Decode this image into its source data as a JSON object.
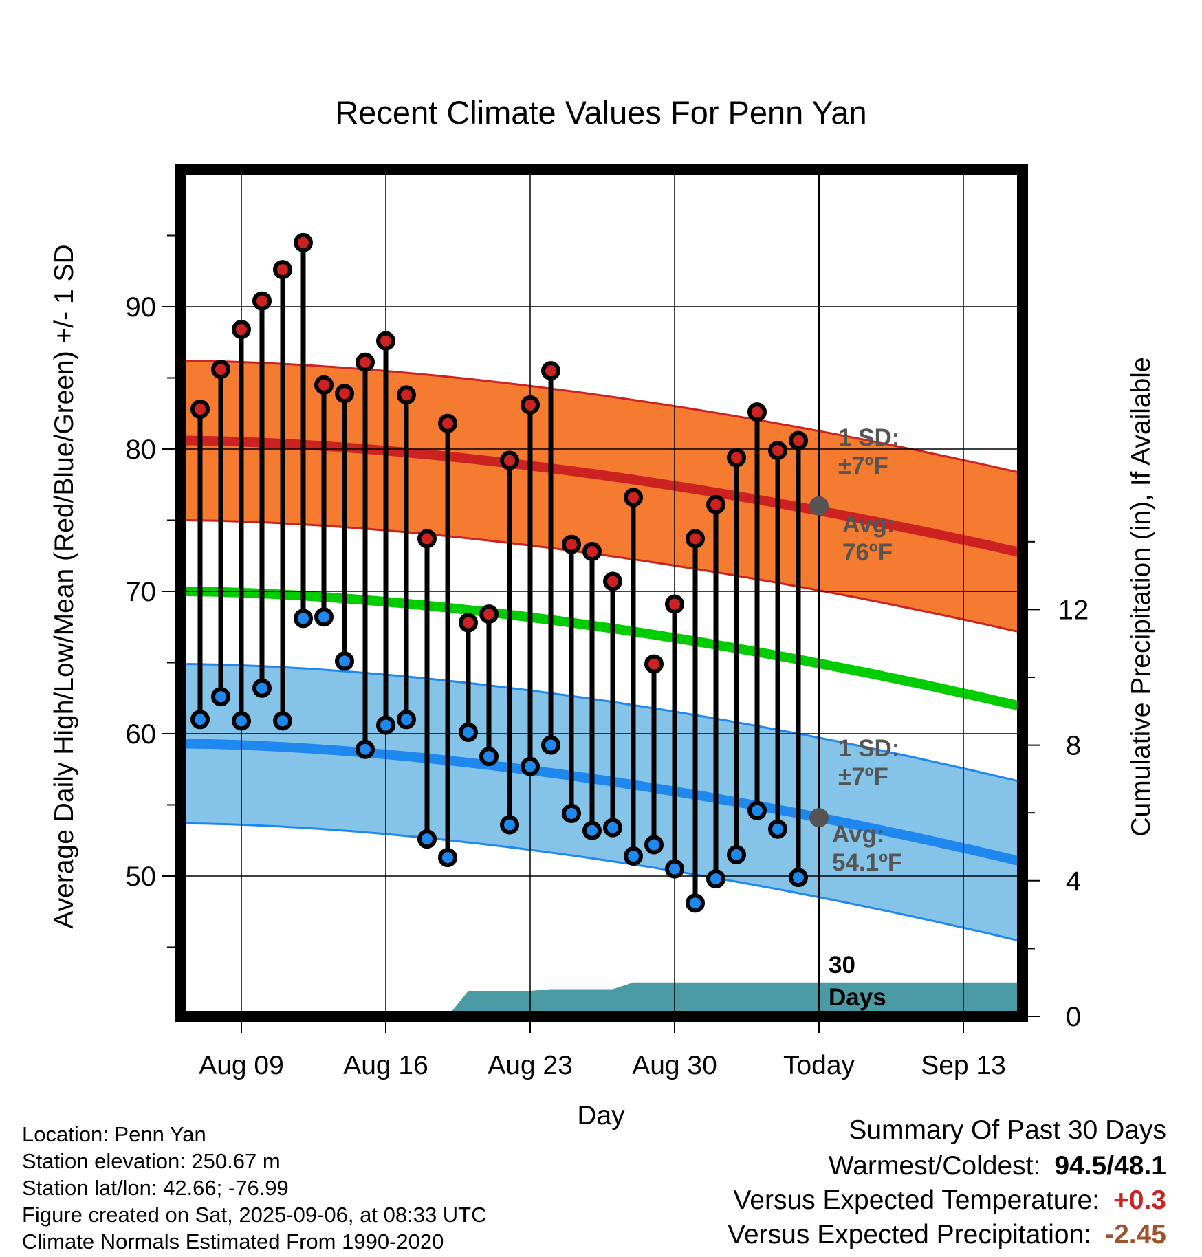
{
  "chart_data": {
    "type": "line",
    "title": "Recent Climate Values For Penn Yan",
    "xlabel": "Day",
    "ylabel": "Average Daily High/Low/Mean (Red/Blue/Green) +/- 1 SD",
    "y2label": "Cumulative Precipitation (in), If Available",
    "x_ticks": [
      "Aug 09",
      "Aug 16",
      "Aug 23",
      "Aug 30",
      "Today",
      "Sep 13"
    ],
    "y_ticks": [
      50,
      60,
      70,
      80,
      90
    ],
    "y2_ticks": [
      0,
      4,
      8,
      12
    ],
    "ylim": [
      40,
      99
    ],
    "y2lim": [
      0,
      25
    ],
    "xlim_days_from_today": [
      -31,
      10
    ],
    "grid": true,
    "today_marker": "30 Days",
    "highs": [
      82.8,
      85.6,
      88.4,
      90.4,
      92.6,
      94.5,
      84.5,
      83.9,
      86.1,
      87.6,
      83.8,
      73.7,
      81.8,
      67.8,
      68.4,
      79.2,
      83.1,
      85.5,
      73.3,
      72.8,
      70.7,
      76.6,
      64.9,
      69.1,
      73.7,
      76.1,
      79.4,
      82.6,
      79.9,
      80.6
    ],
    "lows": [
      61.0,
      62.6,
      60.9,
      63.2,
      60.9,
      68.1,
      68.2,
      65.1,
      58.9,
      60.6,
      61.0,
      52.6,
      51.3,
      60.1,
      58.4,
      53.6,
      57.7,
      59.2,
      54.4,
      53.2,
      53.4,
      51.4,
      52.2,
      50.5,
      48.1,
      49.8,
      51.5,
      54.6,
      53.3,
      49.9
    ],
    "normal_high": {
      "start": 80.6,
      "today": 76.0,
      "end": 72.7,
      "sd_label": "1 SD:",
      "sd_value": "±7ºF",
      "avg_label": "Avg:",
      "avg_value": "76ºF",
      "color": "#cc2222",
      "band_color": "#f47b30"
    },
    "normal_low": {
      "start": 59.3,
      "today": 54.1,
      "end": 51.0,
      "sd_label": "1 SD:",
      "sd_value": "±7ºF",
      "avg_label": "Avg:",
      "avg_value": "54.1ºF",
      "color": "#1e88ee",
      "band_color": "#85c3e8"
    },
    "normal_mean": {
      "start": 70.0,
      "end": 61.9,
      "color": "#00cc00"
    },
    "precip_cumulative": [
      0,
      0,
      0,
      0,
      0,
      0,
      0,
      0,
      0,
      0,
      0,
      0,
      0,
      0.75,
      0.75,
      0.75,
      0.75,
      0.8,
      0.8,
      0.8,
      0.8,
      1.0,
      1.0,
      1.0,
      1.0,
      1.0,
      1.0,
      1.0,
      1.0,
      1.0,
      1.0
    ],
    "precip_color": "#4a9ba3",
    "high_color": "#cc2222",
    "low_color": "#1e88ee"
  },
  "station": {
    "location": "Location: Penn Yan",
    "elevation": "Station elevation: 250.67 m",
    "latlon": "Station lat/lon: 42.66; -76.99",
    "created": "Figure created on Sat, 2025-09-06, at 08:33 UTC",
    "normals": "Climate Normals Estimated From 1990-2020"
  },
  "summary": {
    "title": "Summary Of Past 30 Days",
    "warmest_label": "Warmest/Coldest:",
    "warmest_value": "94.5/48.1",
    "temp_label": "Versus Expected Temperature:",
    "temp_value": "+0.3",
    "temp_color": "#cc2222",
    "precip_label": "Versus Expected Precipitation:",
    "precip_value": "-2.45",
    "precip_color": "#a0522d"
  }
}
